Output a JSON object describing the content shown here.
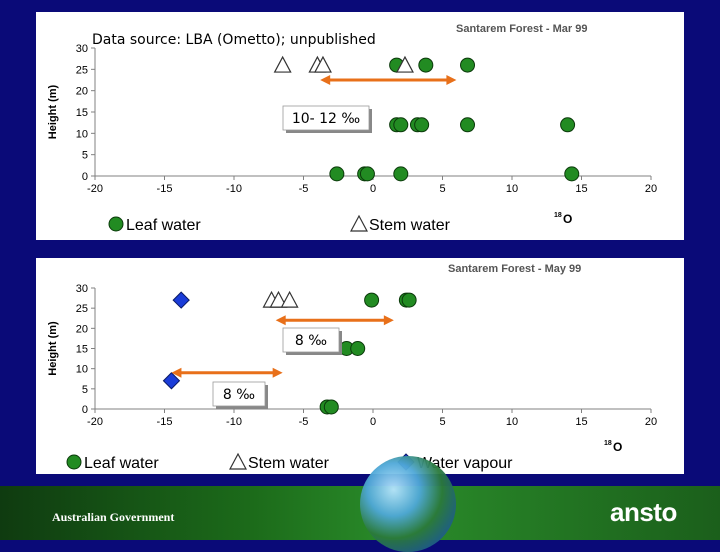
{
  "panel1": {
    "source_note": "Data source: LBA (Ometto); unpublished",
    "title": "Santarem Forest - Mar 99",
    "ylabel": "Height (m)",
    "xlabel_sup": "18",
    "xlabel": "O",
    "annotation": "10- 12 ‰",
    "legend": [
      {
        "label": "Leaf water",
        "marker": "circle"
      },
      {
        "label": "Stem water",
        "marker": "triangle"
      }
    ]
  },
  "panel2": {
    "title": "Santarem Forest - May 99",
    "ylabel": "Height (m)",
    "xlabel_sup": "18",
    "xlabel": "O",
    "annotation_top": "8 ‰",
    "annotation_left": "8 ‰",
    "legend": [
      {
        "label": "Leaf water",
        "marker": "circle"
      },
      {
        "label": "Stem water",
        "marker": "triangle"
      },
      {
        "label": "Water vapour",
        "marker": "diamond"
      }
    ]
  },
  "footer": {
    "government": "Australian Government",
    "logo": "ansto"
  },
  "colors": {
    "background": "#0a0a78",
    "leaf": "#228B22",
    "vapour": "#1a3cd8",
    "arrow": "#e8701a"
  },
  "chart_data": [
    {
      "type": "scatter",
      "title": "Santarem Forest - Mar 99",
      "xlabel": "18O",
      "ylabel": "Height (m)",
      "xlim": [
        -20,
        20
      ],
      "ylim": [
        0,
        30
      ],
      "xticks": [
        -20,
        -15,
        -10,
        -5,
        0,
        5,
        10,
        15,
        20
      ],
      "yticks": [
        0,
        5,
        10,
        15,
        20,
        25,
        30
      ],
      "series": [
        {
          "name": "Leaf water",
          "marker": "circle",
          "points": [
            [
              1.7,
              26
            ],
            [
              3.8,
              26
            ],
            [
              6.8,
              26
            ],
            [
              1.7,
              12
            ],
            [
              2.0,
              12
            ],
            [
              3.2,
              12
            ],
            [
              3.5,
              12
            ],
            [
              6.8,
              12
            ],
            [
              14.0,
              12
            ],
            [
              -2.6,
              0.5
            ],
            [
              -0.6,
              0.5
            ],
            [
              -0.4,
              0.5
            ],
            [
              2.0,
              0.5
            ],
            [
              14.3,
              0.5
            ]
          ]
        },
        {
          "name": "Stem water",
          "marker": "triangle",
          "points": [
            [
              -6.5,
              26
            ],
            [
              -4.0,
              26
            ],
            [
              -3.6,
              26
            ],
            [
              2.3,
              26
            ]
          ]
        }
      ],
      "arrow": {
        "x_from": -3.8,
        "x_to": 6.0,
        "y": 22.5
      },
      "annotation": {
        "text": "10- 12 ‰"
      }
    },
    {
      "type": "scatter",
      "title": "Santarem Forest - May 99",
      "xlabel": "18O",
      "ylabel": "Height (m)",
      "xlim": [
        -20,
        20
      ],
      "ylim": [
        0,
        30
      ],
      "xticks": [
        -20,
        -15,
        -10,
        -5,
        0,
        5,
        10,
        15,
        20
      ],
      "yticks": [
        0,
        5,
        10,
        15,
        20,
        25,
        30
      ],
      "series": [
        {
          "name": "Leaf water",
          "marker": "circle",
          "points": [
            [
              -0.1,
              27
            ],
            [
              2.4,
              27
            ],
            [
              2.6,
              27
            ],
            [
              -1.9,
              15
            ],
            [
              -1.1,
              15
            ],
            [
              -3.3,
              0.5
            ],
            [
              -3.0,
              0.5
            ]
          ]
        },
        {
          "name": "Stem water",
          "marker": "triangle",
          "points": [
            [
              -7.3,
              27
            ],
            [
              -6.8,
              27
            ],
            [
              -6.0,
              27
            ]
          ]
        },
        {
          "name": "Water vapour",
          "marker": "diamond",
          "points": [
            [
              -13.8,
              27
            ],
            [
              -14.5,
              7
            ]
          ]
        }
      ],
      "arrows": [
        {
          "x_from": -7.0,
          "x_to": 1.5,
          "y": 22
        },
        {
          "x_from": -14.5,
          "x_to": -6.5,
          "y": 9
        }
      ],
      "annotations": [
        {
          "text": "8 ‰"
        },
        {
          "text": "8 ‰"
        }
      ]
    }
  ]
}
